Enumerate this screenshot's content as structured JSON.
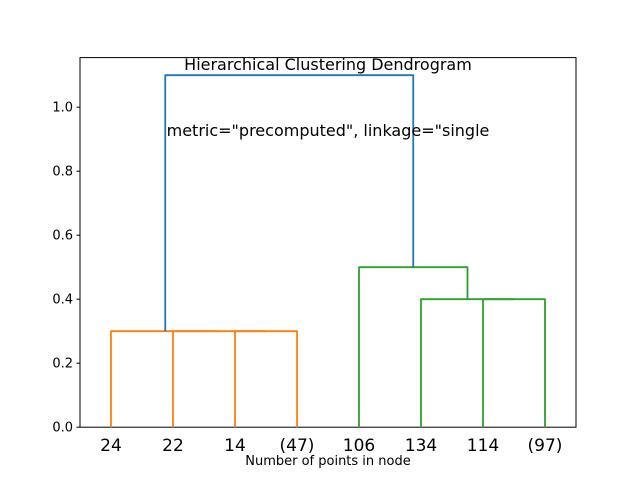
{
  "chart_data": {
    "type": "dendrogram",
    "title": "Hierarchical Clustering Dendrogram",
    "subtitle": "metric=\"precomputed\", linkage=\"single",
    "xlabel": "Number of points in node",
    "leaf_labels": [
      "24",
      "22",
      "14",
      "(47)",
      "106",
      "134",
      "114",
      "(97)"
    ],
    "leaf_positions": [
      5,
      15,
      25,
      35,
      45,
      55,
      65,
      75
    ],
    "xlim": [
      0,
      80
    ],
    "ylim": [
      0,
      1.155
    ],
    "yticks": [
      0.0,
      0.2,
      0.4,
      0.6,
      0.8,
      1.0
    ],
    "ytick_labels": [
      "0.0",
      "0.2",
      "0.4",
      "0.6",
      "0.8",
      "1.0"
    ],
    "grid": false,
    "legend": "none",
    "links": [
      {
        "xl": 25,
        "yl": 0,
        "xr": 35,
        "yr": 0,
        "height": 0.3,
        "color": "#ff7f0e",
        "cluster": "orange"
      },
      {
        "xl": 15,
        "yl": 0,
        "xr": 30,
        "yr": 0.3,
        "height": 0.3,
        "color": "#ff7f0e",
        "cluster": "orange"
      },
      {
        "xl": 5,
        "yl": 0,
        "xr": 22.5,
        "yr": 0.3,
        "height": 0.3,
        "color": "#ff7f0e",
        "cluster": "orange"
      },
      {
        "xl": 65,
        "yl": 0,
        "xr": 75,
        "yr": 0,
        "height": 0.4,
        "color": "#2ca02c",
        "cluster": "green"
      },
      {
        "xl": 55,
        "yl": 0,
        "xr": 70,
        "yr": 0.4,
        "height": 0.4,
        "color": "#2ca02c",
        "cluster": "green"
      },
      {
        "xl": 45,
        "yl": 0,
        "xr": 62.5,
        "yr": 0.4,
        "height": 0.5,
        "color": "#2ca02c",
        "cluster": "green"
      },
      {
        "xl": 13.75,
        "yl": 0.3,
        "xr": 53.75,
        "yr": 0.5,
        "height": 1.1,
        "color": "#1f77b4",
        "cluster": "root"
      }
    ],
    "colors": {
      "root_link": "#1f77b4",
      "left_cluster": "#ff7f0e",
      "right_cluster": "#2ca02c",
      "axis": "#000000",
      "background": "#ffffff"
    }
  }
}
